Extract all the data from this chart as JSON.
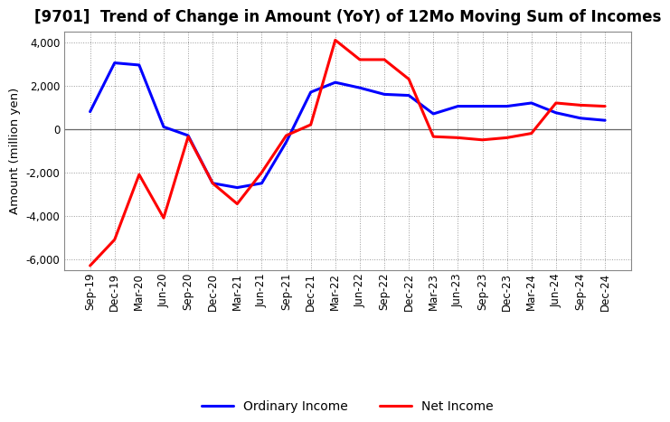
{
  "title": "[9701]  Trend of Change in Amount (YoY) of 12Mo Moving Sum of Incomes",
  "ylabel": "Amount (million yen)",
  "labels": [
    "Sep-19",
    "Dec-19",
    "Mar-20",
    "Jun-20",
    "Sep-20",
    "Dec-20",
    "Mar-21",
    "Jun-21",
    "Sep-21",
    "Dec-21",
    "Mar-22",
    "Jun-22",
    "Sep-22",
    "Dec-22",
    "Mar-23",
    "Jun-23",
    "Sep-23",
    "Dec-23",
    "Mar-24",
    "Jun-24",
    "Sep-24",
    "Dec-24"
  ],
  "ordinary_income": [
    800,
    3050,
    2950,
    100,
    -300,
    -2500,
    -2700,
    -2500,
    -600,
    1700,
    2150,
    1900,
    1600,
    1550,
    700,
    1050,
    1050,
    1050,
    1200,
    750,
    500,
    400
  ],
  "net_income": [
    -6300,
    -5100,
    -2100,
    -4100,
    -350,
    -2500,
    -3450,
    -2000,
    -300,
    200,
    4100,
    3200,
    3200,
    2300,
    -350,
    -400,
    -500,
    -400,
    -200,
    1200,
    1100,
    1050
  ],
  "ordinary_color": "#0000ff",
  "net_color": "#ff0000",
  "background_color": "#ffffff",
  "plot_bg_color": "#ffffff",
  "grid_color": "#999999",
  "zero_line_color": "#666666",
  "ylim": [
    -6500,
    4500
  ],
  "yticks": [
    -6000,
    -4000,
    -2000,
    0,
    2000,
    4000
  ],
  "line_width": 2.2,
  "title_fontsize": 12,
  "legend_fontsize": 10,
  "tick_fontsize": 8.5,
  "ylabel_fontsize": 9.5
}
